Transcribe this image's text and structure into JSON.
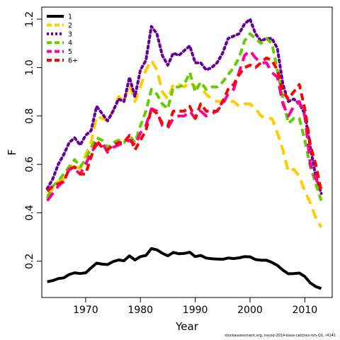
{
  "chart_data": {
    "type": "line",
    "title": "",
    "xlabel": "Year",
    "ylabel": "F",
    "xlim": [
      1962,
      2015
    ],
    "ylim": [
      0.05,
      1.25
    ],
    "xticks": [
      1970,
      1980,
      1990,
      2000,
      2010
    ],
    "yticks": [
      0.2,
      0.4,
      0.6,
      0.8,
      1.0,
      1.2
    ],
    "ytick_labels": [
      "0.2",
      "0.4",
      "0.6",
      "0.8",
      "1.0",
      "1.2"
    ],
    "legend_position": "top-left",
    "x": [
      1963,
      1964,
      1965,
      1966,
      1967,
      1968,
      1969,
      1970,
      1971,
      1972,
      1973,
      1974,
      1975,
      1976,
      1977,
      1978,
      1979,
      1980,
      1981,
      1982,
      1983,
      1984,
      1985,
      1986,
      1987,
      1988,
      1989,
      1990,
      1991,
      1992,
      1993,
      1994,
      1995,
      1996,
      1997,
      1998,
      1999,
      2000,
      2001,
      2002,
      2003,
      2004,
      2005,
      2006,
      2007,
      2008,
      2009,
      2010,
      2011,
      2012,
      2013
    ],
    "series": [
      {
        "name": "1",
        "color": "#000000",
        "dash": "solid",
        "values": [
          0.115,
          0.12,
          0.128,
          0.131,
          0.145,
          0.152,
          0.149,
          0.152,
          0.172,
          0.192,
          0.188,
          0.186,
          0.198,
          0.205,
          0.202,
          0.222,
          0.205,
          0.219,
          0.224,
          0.252,
          0.247,
          0.233,
          0.222,
          0.236,
          0.231,
          0.232,
          0.237,
          0.219,
          0.224,
          0.213,
          0.21,
          0.209,
          0.208,
          0.213,
          0.211,
          0.214,
          0.219,
          0.218,
          0.207,
          0.204,
          0.204,
          0.195,
          0.183,
          0.163,
          0.148,
          0.149,
          0.151,
          0.137,
          0.11,
          0.095,
          0.087
        ]
      },
      {
        "name": "2",
        "color": "#ffcc00",
        "dash": "long",
        "values": [
          0.47,
          0.5,
          0.53,
          0.54,
          0.59,
          0.6,
          0.58,
          0.64,
          0.69,
          0.8,
          0.79,
          0.78,
          0.82,
          0.88,
          0.86,
          0.93,
          0.86,
          0.92,
          0.99,
          1.03,
          0.99,
          0.9,
          0.87,
          0.93,
          0.93,
          0.92,
          0.94,
          0.92,
          0.92,
          0.89,
          0.87,
          0.86,
          0.86,
          0.86,
          0.86,
          0.84,
          0.85,
          0.85,
          0.83,
          0.8,
          0.79,
          0.79,
          0.73,
          0.66,
          0.57,
          0.58,
          0.55,
          0.49,
          0.44,
          0.38,
          0.34
        ]
      },
      {
        "name": "3",
        "color": "#660099",
        "dash": "dot",
        "values": [
          0.5,
          0.54,
          0.6,
          0.64,
          0.69,
          0.71,
          0.68,
          0.72,
          0.74,
          0.84,
          0.81,
          0.78,
          0.82,
          0.87,
          0.86,
          0.96,
          0.88,
          0.99,
          1.03,
          1.17,
          1.14,
          1.05,
          1.01,
          1.06,
          1.05,
          1.07,
          1.09,
          1.02,
          1.02,
          0.99,
          1.0,
          1.02,
          1.06,
          1.12,
          1.13,
          1.14,
          1.18,
          1.2,
          1.14,
          1.11,
          1.12,
          1.12,
          1.08,
          0.93,
          0.86,
          0.87,
          0.85,
          0.81,
          0.67,
          0.55,
          0.48
        ]
      },
      {
        "name": "4",
        "color": "#66cc00",
        "dash": "dash",
        "values": [
          0.46,
          0.51,
          0.53,
          0.56,
          0.59,
          0.62,
          0.59,
          0.62,
          0.67,
          0.71,
          0.7,
          0.67,
          0.69,
          0.7,
          0.69,
          0.72,
          0.69,
          0.76,
          0.82,
          0.91,
          0.89,
          0.85,
          0.83,
          0.92,
          0.92,
          0.93,
          0.98,
          0.9,
          0.94,
          0.91,
          0.92,
          0.92,
          0.94,
          0.97,
          1.0,
          1.04,
          1.11,
          1.14,
          1.12,
          1.1,
          1.12,
          1.1,
          0.99,
          0.87,
          0.77,
          0.79,
          0.79,
          0.7,
          0.59,
          0.52,
          0.45
        ]
      },
      {
        "name": "5",
        "color": "#ff0099",
        "dash": "long",
        "values": [
          0.45,
          0.48,
          0.51,
          0.53,
          0.58,
          0.58,
          0.56,
          0.6,
          0.65,
          0.68,
          0.69,
          0.65,
          0.67,
          0.68,
          0.69,
          0.7,
          0.68,
          0.73,
          0.76,
          0.83,
          0.82,
          0.76,
          0.75,
          0.79,
          0.8,
          0.8,
          0.82,
          0.79,
          0.82,
          0.8,
          0.81,
          0.82,
          0.85,
          0.89,
          0.91,
          0.98,
          1.05,
          1.07,
          1.04,
          1.02,
          1.02,
          0.98,
          0.96,
          0.85,
          0.8,
          0.84,
          0.86,
          0.8,
          0.6,
          0.54,
          0.5
        ]
      },
      {
        "name": "6+",
        "color": "#ff0000",
        "dash": "dash",
        "values": [
          0.49,
          0.51,
          0.52,
          0.53,
          0.58,
          0.59,
          0.56,
          0.56,
          0.63,
          0.7,
          0.67,
          0.66,
          0.68,
          0.69,
          0.69,
          0.72,
          0.66,
          0.7,
          0.74,
          0.83,
          0.81,
          0.77,
          0.76,
          0.82,
          0.82,
          0.82,
          0.84,
          0.79,
          0.85,
          0.82,
          0.82,
          0.82,
          0.86,
          0.91,
          0.93,
          0.97,
          1.0,
          1.01,
          1.0,
          1.02,
          1.04,
          1.03,
          0.99,
          0.9,
          0.87,
          0.9,
          0.93,
          0.83,
          0.68,
          0.6,
          0.49
        ]
      }
    ]
  },
  "credit": "stockassessment.org, nscod-2014-base-catches-nm-Q1, r4141"
}
